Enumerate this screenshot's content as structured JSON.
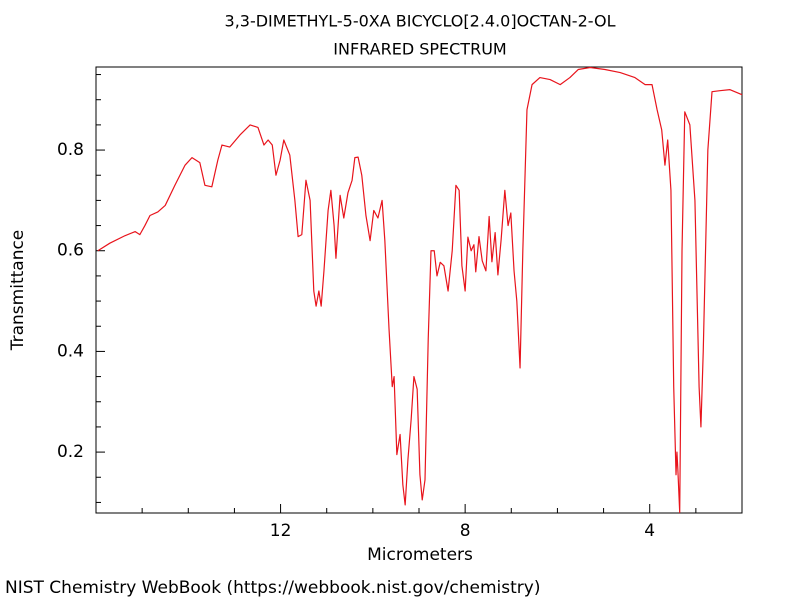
{
  "chart_data": {
    "type": "line",
    "title": "3,3-DIMETHYL-5-0XA BICYCLO[2.4.0]OCTAN-2-OL",
    "subtitle": "INFRARED SPECTRUM",
    "x_label": "Micrometers",
    "y_label": "Transmittance",
    "source": "NIST Chemistry WebBook (https://webbook.nist.gov/chemistry)",
    "color": "#e8141c",
    "xlim": [
      16,
      2
    ],
    "ylim": [
      0.079,
      0.965
    ],
    "xticks": [
      12,
      8,
      4
    ],
    "yticks": [
      0.2,
      0.4,
      0.6,
      0.8
    ],
    "xminorticks": [
      15,
      14,
      13,
      11,
      10,
      9,
      7,
      6,
      5,
      3
    ],
    "yminorticks": [
      0.1,
      0.15,
      0.25,
      0.3,
      0.35,
      0.45,
      0.5,
      0.55,
      0.65,
      0.7,
      0.75,
      0.85,
      0.9,
      0.95
    ],
    "x": [
      15.96,
      15.7,
      15.37,
      15.15,
      15.05,
      14.94,
      14.83,
      14.66,
      14.5,
      14.29,
      14.07,
      13.92,
      13.75,
      13.64,
      13.49,
      13.36,
      13.27,
      13.1,
      12.88,
      12.66,
      12.49,
      12.36,
      12.27,
      12.18,
      12.1,
      12.01,
      11.93,
      11.8,
      11.69,
      11.62,
      11.54,
      11.45,
      11.36,
      11.28,
      11.23,
      11.17,
      11.12,
      11.06,
      10.97,
      10.91,
      10.84,
      10.8,
      10.71,
      10.63,
      10.54,
      10.45,
      10.39,
      10.32,
      10.24,
      10.15,
      10.06,
      9.98,
      9.89,
      9.8,
      9.74,
      9.65,
      9.58,
      9.54,
      9.48,
      9.41,
      9.35,
      9.3,
      9.24,
      9.17,
      9.11,
      9.04,
      8.98,
      8.93,
      8.87,
      8.8,
      8.74,
      8.67,
      8.61,
      8.54,
      8.46,
      8.37,
      8.28,
      8.2,
      8.13,
      8.07,
      8.0,
      7.94,
      7.87,
      7.81,
      7.77,
      7.7,
      7.63,
      7.55,
      7.48,
      7.42,
      7.35,
      7.29,
      7.22,
      7.14,
      7.07,
      7.01,
      6.94,
      6.88,
      6.81,
      6.75,
      6.66,
      6.55,
      6.38,
      6.16,
      5.94,
      5.73,
      5.55,
      5.29,
      4.97,
      4.64,
      4.32,
      4.1,
      3.95,
      3.84,
      3.74,
      3.67,
      3.61,
      3.54,
      3.48,
      3.43,
      3.41,
      3.39,
      3.35,
      3.3,
      3.24,
      3.13,
      3.02,
      2.93,
      2.89,
      2.84,
      2.74,
      2.65,
      2.48,
      2.26,
      2.0
    ],
    "values": [
      0.6,
      0.615,
      0.63,
      0.638,
      0.632,
      0.65,
      0.67,
      0.677,
      0.69,
      0.73,
      0.77,
      0.785,
      0.775,
      0.73,
      0.727,
      0.78,
      0.81,
      0.806,
      0.83,
      0.85,
      0.845,
      0.81,
      0.82,
      0.81,
      0.75,
      0.78,
      0.82,
      0.79,
      0.7,
      0.628,
      0.632,
      0.74,
      0.7,
      0.52,
      0.49,
      0.52,
      0.49,
      0.56,
      0.68,
      0.72,
      0.65,
      0.585,
      0.71,
      0.665,
      0.715,
      0.74,
      0.785,
      0.786,
      0.75,
      0.67,
      0.62,
      0.68,
      0.665,
      0.7,
      0.62,
      0.445,
      0.33,
      0.35,
      0.195,
      0.235,
      0.135,
      0.095,
      0.185,
      0.265,
      0.35,
      0.325,
      0.155,
      0.105,
      0.145,
      0.425,
      0.6,
      0.6,
      0.55,
      0.577,
      0.57,
      0.52,
      0.6,
      0.73,
      0.72,
      0.57,
      0.52,
      0.627,
      0.6,
      0.612,
      0.558,
      0.628,
      0.58,
      0.56,
      0.668,
      0.578,
      0.636,
      0.552,
      0.622,
      0.72,
      0.65,
      0.675,
      0.56,
      0.5,
      0.367,
      0.6,
      0.88,
      0.93,
      0.944,
      0.94,
      0.93,
      0.944,
      0.96,
      0.964,
      0.96,
      0.954,
      0.944,
      0.93,
      0.93,
      0.88,
      0.84,
      0.77,
      0.82,
      0.72,
      0.33,
      0.155,
      0.2,
      0.165,
      0.08,
      0.6,
      0.876,
      0.85,
      0.7,
      0.33,
      0.25,
      0.4,
      0.8,
      0.916,
      0.918,
      0.92,
      0.91
    ]
  }
}
